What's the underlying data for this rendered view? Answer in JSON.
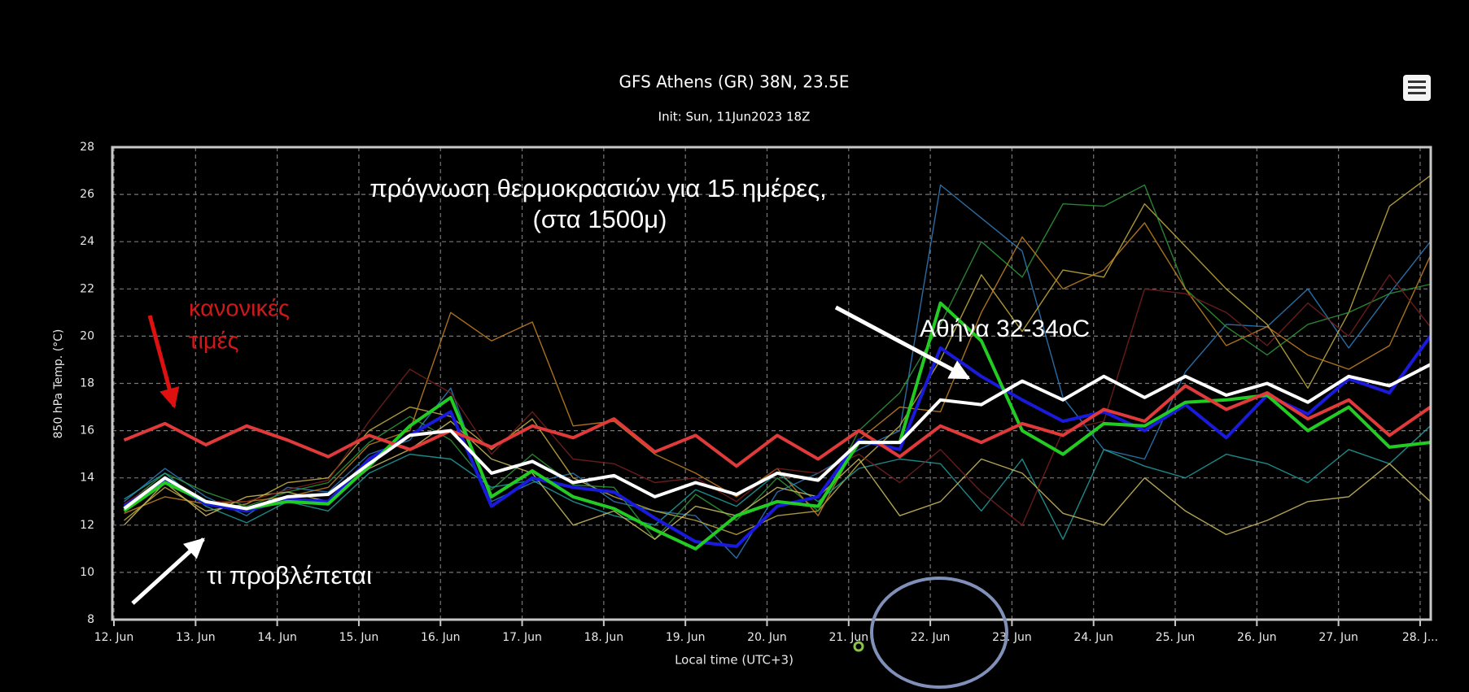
{
  "chart_data": {
    "type": "line",
    "title": "GFS Athens (GR) 38N, 23.5E",
    "subtitle": "Init: Sun, 11Jun2023 18Z",
    "x_label": "Local time (UTC+3)",
    "y_label": "850 hPa Temp. (°C)",
    "annotations": [
      "πρόγνωση θερμοκρασιών για 15 ημέρες,",
      "(στα 1500μ)",
      "κανονικές",
      "τιμές",
      "Αθήνα 32-34oC",
      "τι προβλέπεται"
    ],
    "xlim": [
      -0.02,
      16.13
    ],
    "xticks": [
      {
        "value": 0,
        "label": "12. Jun"
      },
      {
        "value": 1,
        "label": "13. Jun"
      },
      {
        "value": 2,
        "label": "14. Jun"
      },
      {
        "value": 3,
        "label": "15. Jun"
      },
      {
        "value": 4,
        "label": "16. Jun"
      },
      {
        "value": 5,
        "label": "17. Jun"
      },
      {
        "value": 6,
        "label": "18. Jun"
      },
      {
        "value": 7,
        "label": "19. Jun"
      },
      {
        "value": 8,
        "label": "20. Jun"
      },
      {
        "value": 9,
        "label": "21. Jun"
      },
      {
        "value": 10,
        "label": "22. Jun"
      },
      {
        "value": 11,
        "label": "23. Jun"
      },
      {
        "value": 12,
        "label": "24. Jun"
      },
      {
        "value": 13,
        "label": "25. Jun"
      },
      {
        "value": 14,
        "label": "26. Jun"
      },
      {
        "value": 15,
        "label": "27. Jun"
      },
      {
        "value": 16,
        "label": "28. J..."
      }
    ],
    "ylim": [
      8,
      28
    ],
    "yticks": [
      8,
      10,
      12,
      14,
      16,
      18,
      20,
      22,
      24,
      26,
      28
    ],
    "grid": true,
    "x": [
      0.125,
      0.625,
      1.125,
      1.625,
      2.125,
      2.625,
      3.125,
      3.625,
      4.125,
      4.625,
      5.125,
      5.625,
      6.125,
      6.625,
      7.125,
      7.625,
      8.125,
      8.625,
      9.125,
      9.625,
      10.125,
      10.625,
      11.125,
      11.625,
      12.125,
      12.625,
      13.125,
      13.625,
      14.125,
      14.625,
      15.125,
      15.625,
      16.125
    ],
    "series": [
      {
        "color": "#2f7fc0",
        "values": [
          13.0,
          14.4,
          13.2,
          12.4,
          13.6,
          13.4,
          15.0,
          15.6,
          17.8,
          13.0,
          13.8,
          14.2,
          13.0,
          12.6,
          12.4,
          10.6,
          13.4,
          14.2,
          15.2,
          16.0,
          26.4,
          25.0,
          23.6,
          17.4,
          15.2,
          14.8,
          18.5,
          20.5,
          20.4,
          22.0,
          19.5,
          21.8,
          24.0
        ]
      },
      {
        "color": "#c8b040",
        "values": [
          12.2,
          13.6,
          12.6,
          12.9,
          13.8,
          14.0,
          16.0,
          17.0,
          16.6,
          15.2,
          16.5,
          14.0,
          13.2,
          12.6,
          12.2,
          11.6,
          12.4,
          12.6,
          14.6,
          16.2,
          19.0,
          22.6,
          20.2,
          22.8,
          22.5,
          25.6,
          23.8,
          22.0,
          20.5,
          17.8,
          21.0,
          25.5,
          26.8
        ]
      },
      {
        "color": "#2f9a3a",
        "values": [
          12.8,
          14.2,
          13.4,
          12.8,
          13.4,
          13.8,
          15.5,
          16.6,
          15.6,
          13.5,
          15.0,
          13.7,
          13.6,
          11.4,
          13.3,
          12.2,
          14.0,
          12.6,
          16.0,
          17.6,
          20.5,
          24.0,
          22.5,
          25.6,
          25.5,
          26.4,
          22.0,
          20.4,
          19.2,
          20.5,
          21.0,
          21.8,
          22.2
        ]
      },
      {
        "color": "#c88420",
        "values": [
          12.5,
          13.2,
          12.9,
          13.0,
          13.2,
          13.6,
          15.4,
          16.0,
          21.0,
          19.8,
          20.6,
          16.2,
          16.4,
          15.0,
          14.2,
          13.2,
          14.4,
          12.4,
          15.6,
          17.0,
          16.8,
          21.0,
          24.2,
          22.0,
          22.8,
          24.8,
          22.0,
          19.6,
          20.4,
          19.2,
          18.6,
          19.6,
          23.4
        ]
      },
      {
        "color": "#20a0a0",
        "values": [
          13.1,
          14.2,
          12.8,
          12.1,
          13.0,
          12.6,
          14.2,
          15.0,
          14.8,
          13.6,
          13.9,
          13.0,
          12.4,
          12.0,
          13.5,
          12.8,
          14.2,
          13.0,
          14.4,
          14.8,
          14.6,
          12.6,
          14.8,
          11.4,
          15.2,
          14.5,
          14.0,
          15.0,
          14.6,
          13.8,
          15.2,
          14.6,
          16.2
        ]
      },
      {
        "color": "#d0c060",
        "values": [
          12.0,
          13.8,
          12.4,
          13.2,
          13.4,
          13.0,
          14.4,
          15.2,
          16.4,
          14.8,
          14.2,
          12.0,
          12.6,
          11.4,
          12.8,
          12.4,
          13.6,
          13.2,
          14.8,
          12.4,
          13.0,
          14.8,
          14.2,
          12.5,
          12.0,
          14.0,
          12.6,
          11.6,
          12.2,
          13.0,
          13.2,
          14.6,
          13.0
        ]
      },
      {
        "color": "#7a2020",
        "values": [
          12.9,
          14.0,
          13.0,
          13.0,
          13.5,
          13.9,
          16.4,
          18.6,
          17.6,
          15.0,
          16.8,
          14.8,
          14.6,
          13.8,
          14.0,
          13.0,
          14.4,
          14.2,
          15.0,
          13.8,
          15.2,
          13.4,
          12.0,
          16.0,
          16.4,
          22.0,
          21.8,
          21.0,
          19.6,
          21.4,
          20.0,
          22.6,
          20.4
        ]
      },
      {
        "color": "#1a1adc",
        "bold": true,
        "values": [
          12.8,
          13.9,
          12.9,
          12.6,
          13.1,
          13.0,
          14.8,
          15.8,
          16.8,
          12.8,
          14.0,
          13.6,
          13.4,
          12.3,
          11.3,
          11.1,
          12.8,
          13.2,
          15.6,
          15.2,
          19.5,
          18.3,
          17.3,
          16.4,
          16.8,
          16.0,
          17.1,
          15.7,
          17.5,
          16.7,
          18.2,
          17.6,
          20.0
        ]
      },
      {
        "color": "#22cc22",
        "bold": true,
        "values": [
          12.6,
          13.8,
          13.0,
          12.7,
          13.0,
          12.9,
          14.5,
          16.2,
          17.4,
          13.2,
          14.3,
          13.2,
          12.7,
          11.8,
          11.0,
          12.4,
          13.0,
          12.8,
          15.5,
          15.5,
          21.4,
          19.8,
          16.0,
          15.0,
          16.3,
          16.2,
          17.2,
          17.3,
          17.5,
          16.0,
          17.0,
          15.3,
          15.5
        ]
      },
      {
        "color": "#e03a3a",
        "bold": true,
        "values": [
          15.6,
          16.3,
          15.4,
          16.2,
          15.6,
          14.9,
          15.8,
          15.2,
          16.0,
          15.3,
          16.2,
          15.7,
          16.5,
          15.1,
          15.8,
          14.5,
          15.8,
          14.8,
          16.0,
          14.9,
          16.2,
          15.5,
          16.3,
          15.8,
          16.9,
          16.4,
          17.9,
          16.9,
          17.6,
          16.5,
          17.3,
          15.8,
          17.0
        ]
      },
      {
        "color": "#ffffff",
        "bold": true,
        "values": [
          12.7,
          14.0,
          13.0,
          12.7,
          13.2,
          13.3,
          14.6,
          15.8,
          16.0,
          14.2,
          14.7,
          13.8,
          14.1,
          13.2,
          13.8,
          13.3,
          14.2,
          13.9,
          15.5,
          15.5,
          17.3,
          17.1,
          18.1,
          17.3,
          18.3,
          17.4,
          18.3,
          17.5,
          18.0,
          17.2,
          18.3,
          17.9,
          18.8
        ]
      }
    ]
  }
}
